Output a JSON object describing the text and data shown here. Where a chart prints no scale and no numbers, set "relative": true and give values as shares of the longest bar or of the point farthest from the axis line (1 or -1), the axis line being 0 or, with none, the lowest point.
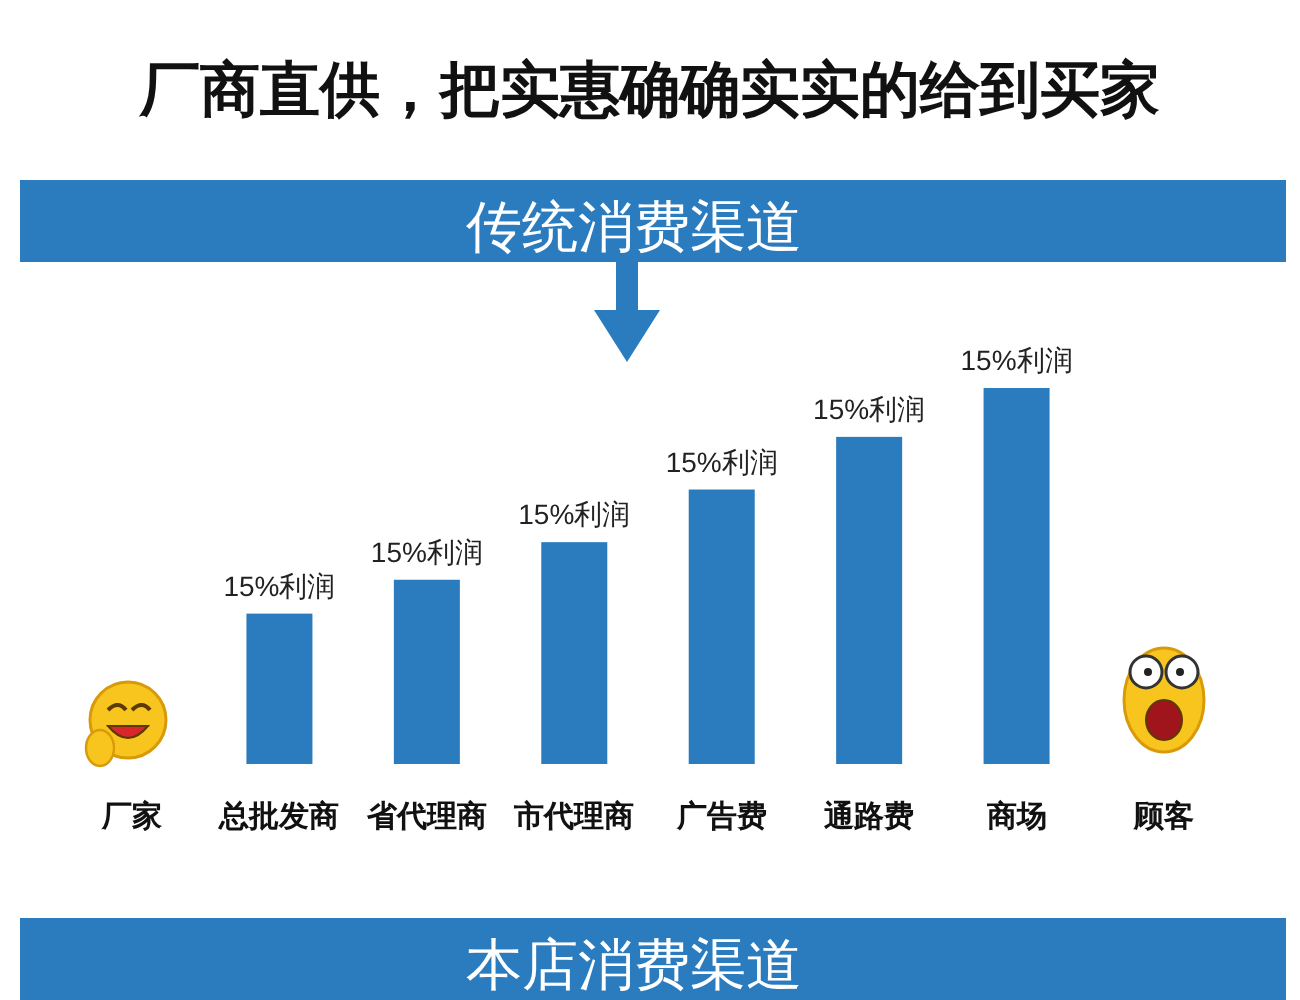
{
  "chart_data": {
    "type": "bar",
    "title": "厂商直供，把实惠确确实实的给到买家",
    "subtitle": "传统消费渠道",
    "annotations": [
      {
        "text": "15%利润",
        "x": "总批发商",
        "y": 0.4
      },
      {
        "text": "15%利润",
        "x": "省代理商",
        "y": 0.49
      },
      {
        "text": "15%利润",
        "x": "市代理商",
        "y": 0.59
      },
      {
        "text": "15%利润",
        "x": "广告费",
        "y": 0.73
      },
      {
        "text": "15%利润",
        "x": "通路费",
        "y": 0.87
      },
      {
        "text": "15%利润",
        "x": "商场",
        "y": 1
      },
      "本店消费渠道"
    ],
    "categories": [
      "厂家",
      "总批发商",
      "省代理商",
      "市代理商",
      "广告费",
      "通路费",
      "商场",
      "顾客"
    ],
    "values": [
      null,
      0.4,
      0.49,
      0.59,
      0.73,
      0.87,
      1,
      null
    ],
    "relative": true,
    "color": "#2b7bbf"
  }
}
